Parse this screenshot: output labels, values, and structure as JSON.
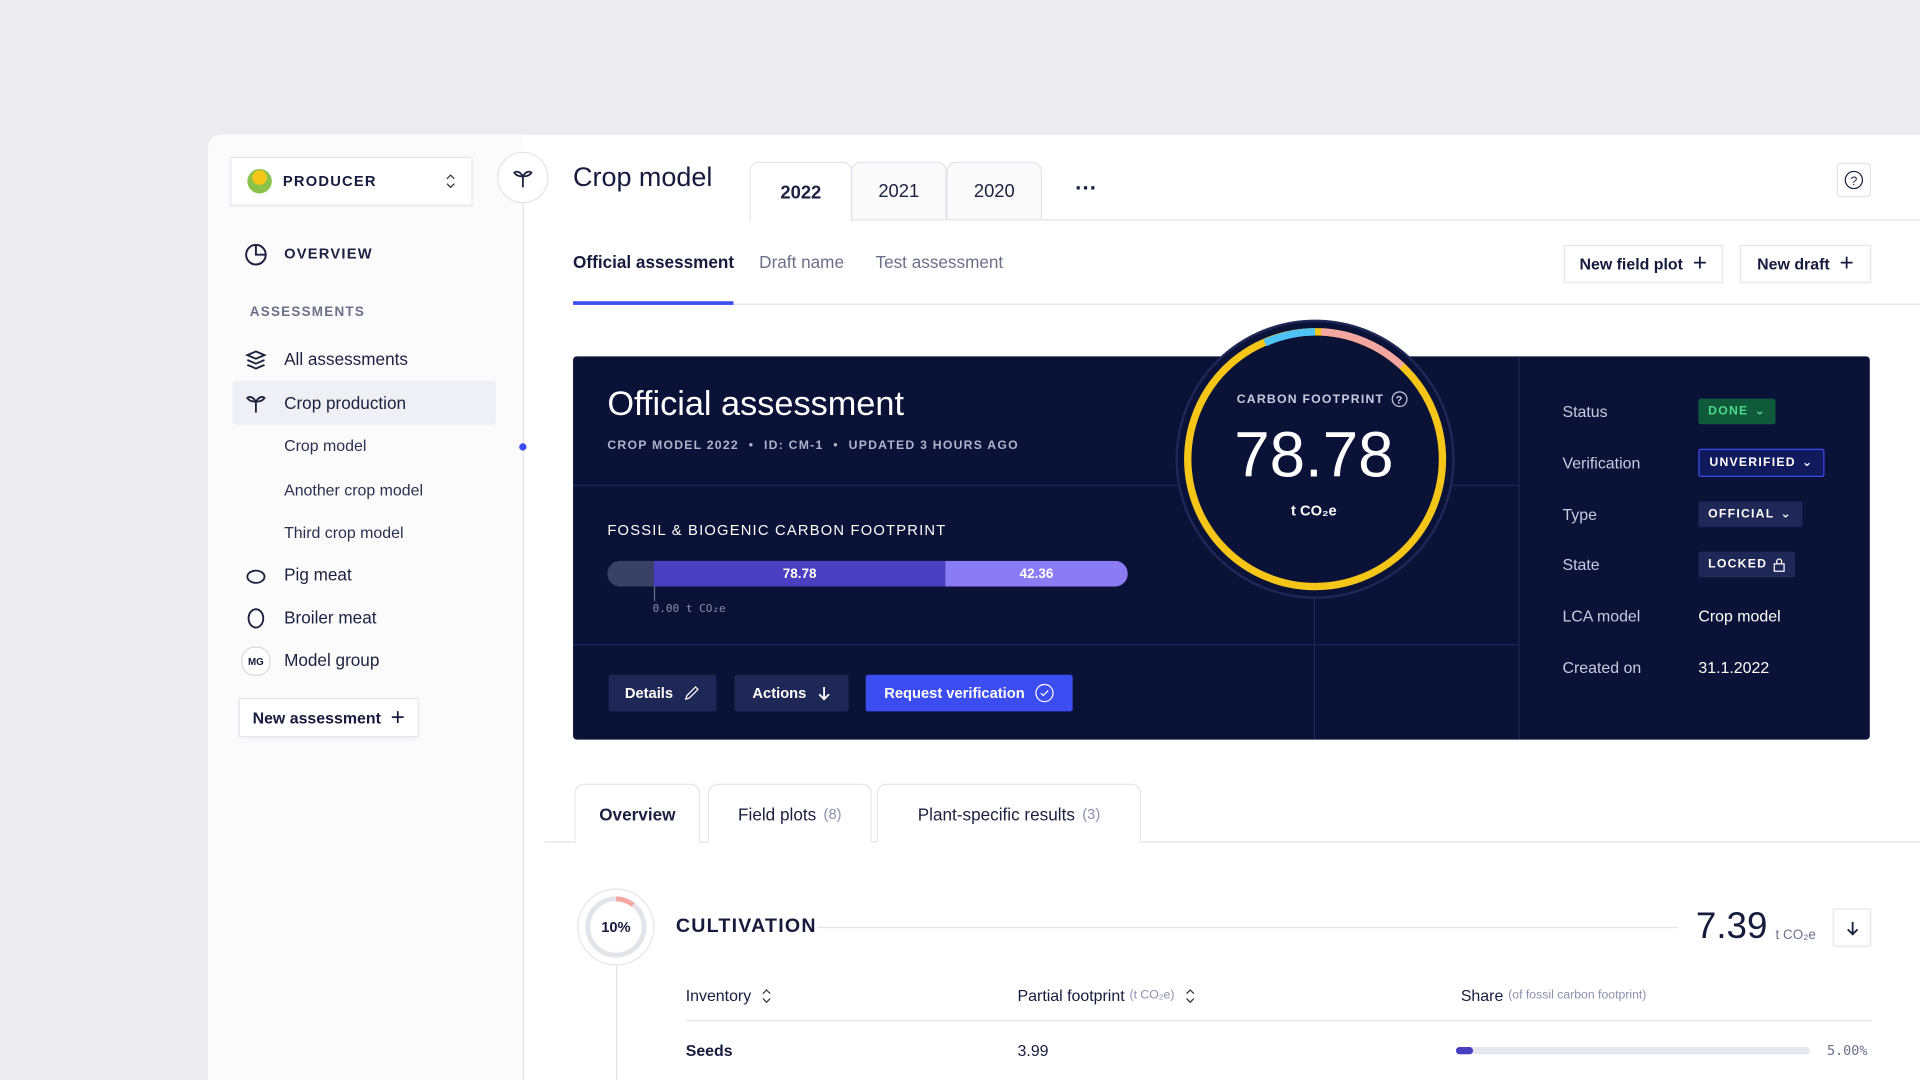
{
  "sidebar": {
    "producer": "PRODUCER",
    "overview": "OVERVIEW",
    "section": "ASSESSMENTS",
    "items": [
      "All assessments",
      "Crop production",
      "Crop model",
      "Another crop model",
      "Third crop model",
      "Pig meat",
      "Broiler meat",
      "Model group"
    ],
    "model_group_badge": "MG",
    "new_assessment": "New assessment"
  },
  "header": {
    "title": "Crop model",
    "year_tabs": [
      "2022",
      "2021",
      "2020"
    ],
    "more": "···"
  },
  "subtabs": [
    "Official assessment",
    "Draft name",
    "Test assessment"
  ],
  "actions": [
    "New field plot",
    "New draft"
  ],
  "card": {
    "title": "Official assessment",
    "meta": [
      "CROP MODEL 2022",
      "ID: CM-1",
      "UPDATED 3 HOURS AGO"
    ],
    "footprint_title": "FOSSIL & BIOGENIC CARBON FOOTPRINT",
    "bar_values": [
      "78.78",
      "42.36"
    ],
    "bar_axis": "0.00 t CO₂e",
    "buttons": [
      "Details",
      "Actions",
      "Request verification"
    ],
    "gauge": {
      "label": "CARBON FOOTPRINT",
      "value": "78.78",
      "unit": "t CO₂e"
    },
    "properties": [
      {
        "label": "Status",
        "value": "DONE"
      },
      {
        "label": "Verification",
        "value": "UNVERIFIED"
      },
      {
        "label": "Type",
        "value": "OFFICIAL"
      },
      {
        "label": "State",
        "value": "LOCKED"
      },
      {
        "label": "LCA model",
        "value": "Crop model"
      },
      {
        "label": "Created on",
        "value": "31.1.2022"
      }
    ]
  },
  "detail_tabs": [
    {
      "label": "Overview"
    },
    {
      "label": "Field plots",
      "count": "(8)"
    },
    {
      "label": "Plant-specific results",
      "count": "(3)"
    }
  ],
  "cultivation": {
    "percent": "10%",
    "title": "CULTIVATION",
    "value": "7.39",
    "unit": "t CO₂e",
    "columns": [
      {
        "label": "Inventory"
      },
      {
        "label": "Partial footprint",
        "note": "(t CO₂e)"
      },
      {
        "label": "Share",
        "note": "(of fossil carbon footprint)"
      }
    ],
    "rows": [
      {
        "name": "Seeds",
        "value": "3.99",
        "share": "5.00%"
      }
    ]
  }
}
